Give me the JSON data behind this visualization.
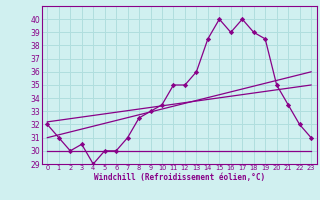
{
  "xlabel": "Windchill (Refroidissement éolien,°C)",
  "background_color": "#d0f0f0",
  "grid_color": "#b0dede",
  "line_color": "#880088",
  "hours": [
    0,
    1,
    2,
    3,
    4,
    5,
    6,
    7,
    8,
    9,
    10,
    11,
    12,
    13,
    14,
    15,
    16,
    17,
    18,
    19,
    20,
    21,
    22,
    23
  ],
  "temp_line": [
    32,
    31,
    30,
    30.5,
    29,
    30,
    30,
    31,
    32.5,
    33,
    33.5,
    35,
    35,
    36,
    38.5,
    40,
    39,
    40,
    39,
    38.5,
    35,
    33.5,
    32,
    31
  ],
  "min_line": [
    30,
    30,
    30,
    30,
    30,
    30,
    30,
    30,
    30,
    30,
    30,
    30,
    30,
    30,
    30,
    30,
    30,
    30,
    30,
    30,
    30,
    30,
    30,
    30
  ],
  "trend1_y": [
    31.0,
    36.0
  ],
  "trend2_y": [
    32.2,
    35.0
  ],
  "ylim": [
    29,
    41
  ],
  "xlim": [
    -0.5,
    23.5
  ],
  "yticks": [
    29,
    30,
    31,
    32,
    33,
    34,
    35,
    36,
    37,
    38,
    39,
    40
  ],
  "xticks": [
    0,
    1,
    2,
    3,
    4,
    5,
    6,
    7,
    8,
    9,
    10,
    11,
    12,
    13,
    14,
    15,
    16,
    17,
    18,
    19,
    20,
    21,
    22,
    23
  ]
}
